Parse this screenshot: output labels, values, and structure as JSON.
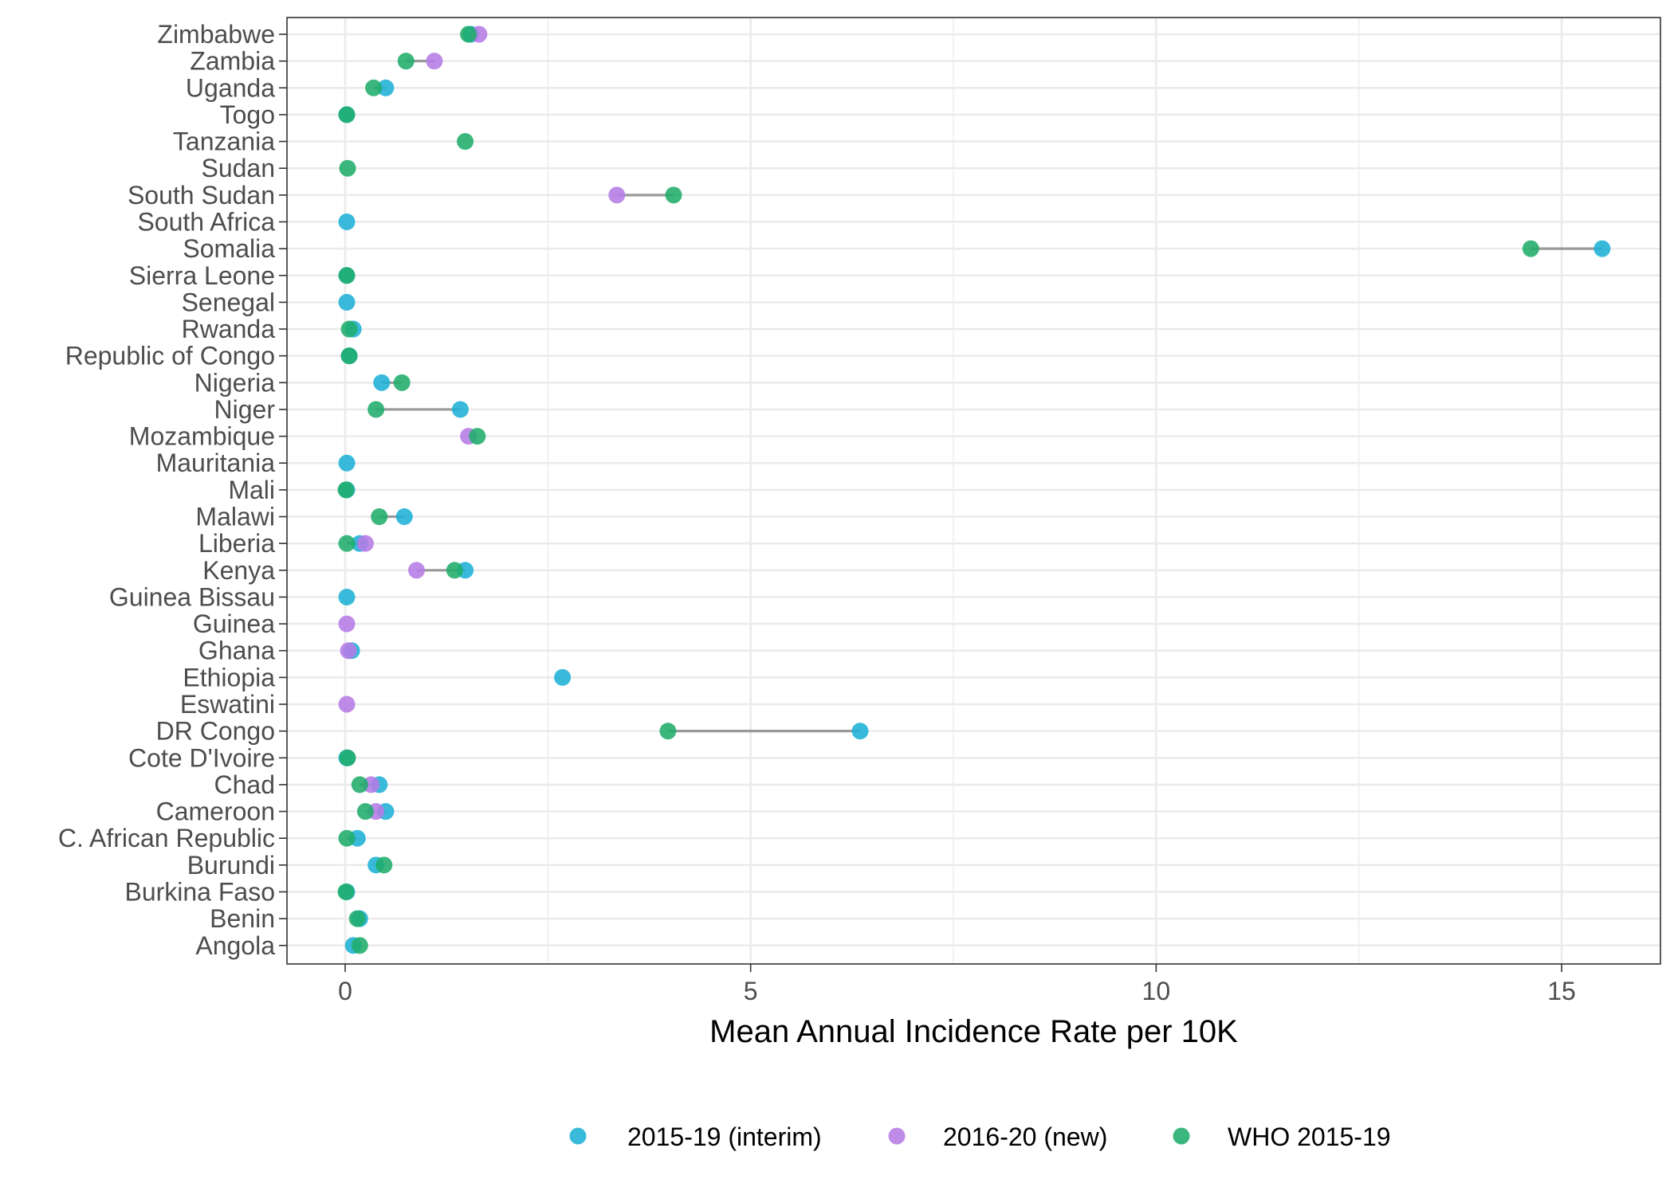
{
  "chart_data": {
    "type": "scatter",
    "title": "",
    "xlabel": "Mean Annual Incidence Rate per 10K",
    "ylabel": "",
    "xlim": [
      -0.7,
      16.2
    ],
    "x_ticks": [
      0,
      5,
      10,
      15
    ],
    "x_tick_labels": [
      "0",
      "5",
      "10",
      "15"
    ],
    "grid": true,
    "legend_position": "bottom",
    "categories": [
      "Zimbabwe",
      "Zambia",
      "Uganda",
      "Togo",
      "Tanzania",
      "Sudan",
      "South Sudan",
      "South Africa",
      "Somalia",
      "Sierra Leone",
      "Senegal",
      "Rwanda",
      "Republic of Congo",
      "Nigeria",
      "Niger",
      "Mozambique",
      "Mauritania",
      "Mali",
      "Malawi",
      "Liberia",
      "Kenya",
      "Guinea Bissau",
      "Guinea",
      "Ghana",
      "Ethiopia",
      "Eswatini",
      "DR Congo",
      "Cote D'Ivoire",
      "Chad",
      "Cameroon",
      "C. African Republic",
      "Burundi",
      "Burkina Faso",
      "Benin",
      "Angola"
    ],
    "series": [
      {
        "name": "2015-19 (interim)",
        "color": "#1fb0d6",
        "values": [
          1.55,
          null,
          0.5,
          0.02,
          null,
          null,
          null,
          0.02,
          15.5,
          0.02,
          0.02,
          0.1,
          0.05,
          0.45,
          1.42,
          null,
          0.02,
          0.02,
          0.73,
          0.18,
          1.48,
          0.02,
          null,
          0.08,
          2.68,
          null,
          6.35,
          0.02,
          0.42,
          0.5,
          0.15,
          0.38,
          0.02,
          0.18,
          0.1
        ]
      },
      {
        "name": "2016-20 (new)",
        "color": "#b57be6",
        "values": [
          1.65,
          1.1,
          null,
          null,
          null,
          null,
          3.35,
          null,
          null,
          null,
          null,
          null,
          null,
          null,
          null,
          1.52,
          null,
          null,
          null,
          0.25,
          0.88,
          null,
          0.02,
          0.04,
          null,
          0.02,
          null,
          null,
          0.32,
          0.38,
          null,
          null,
          null,
          null,
          null
        ]
      },
      {
        "name": "WHO 2015-19",
        "color": "#20ad6b",
        "values": [
          1.52,
          0.75,
          0.35,
          0.02,
          1.48,
          0.03,
          4.05,
          null,
          14.62,
          0.02,
          null,
          0.05,
          0.05,
          0.7,
          0.38,
          1.63,
          null,
          0.01,
          0.42,
          0.02,
          1.35,
          null,
          null,
          null,
          null,
          null,
          3.98,
          0.03,
          0.18,
          0.25,
          0.02,
          0.48,
          0.01,
          0.15,
          0.18
        ]
      }
    ]
  }
}
